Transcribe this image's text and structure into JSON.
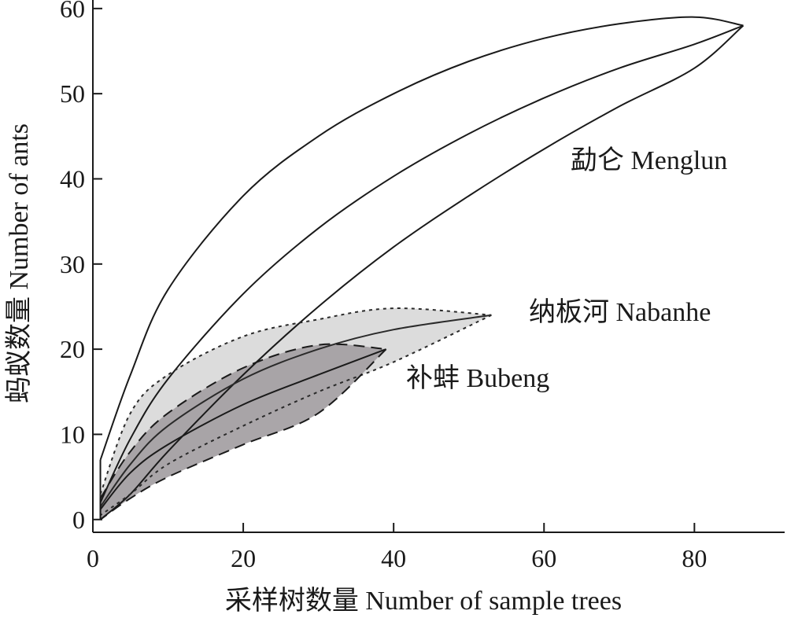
{
  "chart_data": {
    "type": "line",
    "title": "",
    "xlabel": "采样树数量 Number of sample trees",
    "ylabel": "蚂蚁数量 Number of ants",
    "xlim": [
      0,
      92
    ],
    "ylim": [
      -1.5,
      61
    ],
    "xticks": [
      0,
      20,
      40,
      60,
      80
    ],
    "yticks": [
      0,
      10,
      20,
      30,
      40,
      50,
      60
    ],
    "grid": false,
    "legend": "none",
    "series": [
      {
        "name": "勐仑 Menglun",
        "style": "solid",
        "fill": "none",
        "color": "#1a1a1a",
        "x": [
          1,
          5,
          10,
          20,
          30,
          40,
          50,
          60,
          70,
          80,
          86.5
        ],
        "mean": [
          2.0,
          9.5,
          16.5,
          26.5,
          34.2,
          40.3,
          45.3,
          49.5,
          53.0,
          55.8,
          58.0
        ],
        "upper": [
          7.0,
          17.0,
          27.0,
          38.0,
          45.0,
          50.0,
          53.8,
          56.5,
          58.2,
          59.0,
          58.0
        ],
        "lower": [
          0.0,
          3.0,
          8.0,
          17.0,
          25.0,
          32.0,
          38.0,
          43.5,
          48.5,
          53.0,
          58.0
        ]
      },
      {
        "name": "纳板河 Nabanhe",
        "style": "dotted",
        "fill": "#dcdcdc",
        "color": "#2a2a2a",
        "x": [
          1,
          5,
          10,
          20,
          30,
          40,
          53
        ],
        "mean": [
          1.5,
          6.5,
          11.0,
          16.5,
          20.0,
          22.3,
          24.0
        ],
        "upper": [
          3.0,
          12.5,
          17.0,
          21.5,
          23.5,
          24.8,
          24.0
        ],
        "lower": [
          0.5,
          3.0,
          6.5,
          11.0,
          15.0,
          18.5,
          24.0
        ]
      },
      {
        "name": "补蚌 Bubeng",
        "style": "dashed",
        "fill": "#a39ea2",
        "color": "#1a1a1a",
        "x": [
          1,
          5,
          10,
          20,
          30,
          39
        ],
        "mean": [
          1.2,
          5.5,
          8.8,
          13.5,
          17.0,
          20.0
        ],
        "upper": [
          2.5,
          8.0,
          12.5,
          17.8,
          20.5,
          20.0
        ],
        "lower": [
          0.0,
          2.5,
          5.0,
          8.8,
          12.5,
          20.0
        ]
      }
    ]
  }
}
